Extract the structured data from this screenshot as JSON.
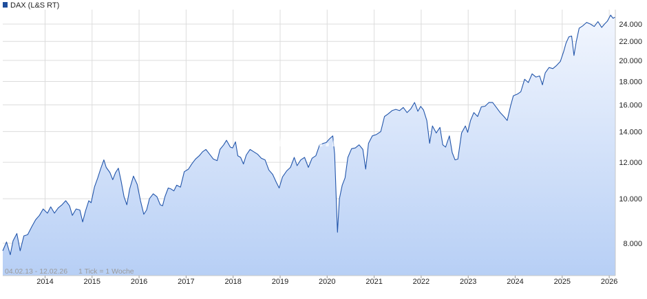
{
  "chart_data": {
    "type": "area",
    "legend": {
      "label": "DAX (L&S RT)",
      "placement": "top-left"
    },
    "watermark": "ARIVA.DE",
    "range_label": "04.02.13 - 12.02.26",
    "tick_label": "1 Tick = 1 Woche",
    "x_ticks": [
      "2014",
      "2015",
      "2016",
      "2017",
      "2018",
      "2019",
      "2020",
      "2021",
      "2022",
      "2023",
      "2024",
      "2025",
      "2026"
    ],
    "y_ticks": [
      {
        "value": 8000,
        "label": "8.000"
      },
      {
        "value": 10000,
        "label": "10.000"
      },
      {
        "value": 12000,
        "label": "12.000"
      },
      {
        "value": 14000,
        "label": "14.000"
      },
      {
        "value": 16000,
        "label": "16.000"
      },
      {
        "value": 18000,
        "label": "18.000"
      },
      {
        "value": 20000,
        "label": "20.000"
      },
      {
        "value": 22000,
        "label": "22.000"
      },
      {
        "value": 24000,
        "label": "24.000"
      }
    ],
    "y_scale": "log",
    "ylim": [
      6800,
      25800
    ],
    "xlim": [
      2013.1,
      2026.13
    ],
    "grid": true,
    "colors": {
      "line": "#2255aa",
      "fill_top": "#f2f6fe",
      "fill_bottom": "#b7cff5",
      "grid": "#dcdcdc",
      "legend_box": "#1f4e9c"
    },
    "series": [
      {
        "name": "DAX (L&S RT)",
        "points": [
          [
            2013.1,
            7700
          ],
          [
            2013.18,
            8050
          ],
          [
            2013.26,
            7550
          ],
          [
            2013.32,
            8100
          ],
          [
            2013.4,
            8400
          ],
          [
            2013.47,
            7700
          ],
          [
            2013.55,
            8300
          ],
          [
            2013.63,
            8350
          ],
          [
            2013.72,
            8700
          ],
          [
            2013.8,
            9000
          ],
          [
            2013.88,
            9200
          ],
          [
            2013.96,
            9500
          ],
          [
            2014.05,
            9300
          ],
          [
            2014.12,
            9600
          ],
          [
            2014.2,
            9300
          ],
          [
            2014.28,
            9550
          ],
          [
            2014.36,
            9700
          ],
          [
            2014.44,
            9900
          ],
          [
            2014.52,
            9650
          ],
          [
            2014.58,
            9200
          ],
          [
            2014.66,
            9500
          ],
          [
            2014.74,
            9450
          ],
          [
            2014.8,
            8900
          ],
          [
            2014.86,
            9400
          ],
          [
            2014.93,
            9900
          ],
          [
            2014.98,
            9800
          ],
          [
            2015.05,
            10600
          ],
          [
            2015.12,
            11100
          ],
          [
            2015.18,
            11600
          ],
          [
            2015.25,
            12150
          ],
          [
            2015.3,
            11700
          ],
          [
            2015.38,
            11400
          ],
          [
            2015.44,
            11000
          ],
          [
            2015.5,
            11400
          ],
          [
            2015.56,
            11650
          ],
          [
            2015.62,
            10900
          ],
          [
            2015.68,
            10100
          ],
          [
            2015.74,
            9700
          ],
          [
            2015.8,
            10500
          ],
          [
            2015.88,
            11200
          ],
          [
            2015.96,
            10750
          ],
          [
            2016.03,
            9900
          ],
          [
            2016.1,
            9250
          ],
          [
            2016.16,
            9450
          ],
          [
            2016.22,
            10000
          ],
          [
            2016.3,
            10250
          ],
          [
            2016.38,
            10100
          ],
          [
            2016.45,
            9700
          ],
          [
            2016.5,
            9650
          ],
          [
            2016.55,
            10100
          ],
          [
            2016.62,
            10550
          ],
          [
            2016.68,
            10500
          ],
          [
            2016.74,
            10400
          ],
          [
            2016.8,
            10700
          ],
          [
            2016.88,
            10600
          ],
          [
            2016.96,
            11450
          ],
          [
            2017.05,
            11600
          ],
          [
            2017.12,
            11900
          ],
          [
            2017.2,
            12200
          ],
          [
            2017.28,
            12400
          ],
          [
            2017.35,
            12650
          ],
          [
            2017.42,
            12800
          ],
          [
            2017.5,
            12500
          ],
          [
            2017.58,
            12200
          ],
          [
            2017.66,
            12100
          ],
          [
            2017.72,
            12800
          ],
          [
            2017.8,
            13100
          ],
          [
            2017.86,
            13400
          ],
          [
            2017.94,
            12950
          ],
          [
            2017.99,
            12900
          ],
          [
            2018.05,
            13300
          ],
          [
            2018.1,
            12400
          ],
          [
            2018.16,
            12300
          ],
          [
            2018.22,
            11900
          ],
          [
            2018.28,
            12450
          ],
          [
            2018.36,
            12800
          ],
          [
            2018.44,
            12650
          ],
          [
            2018.52,
            12500
          ],
          [
            2018.6,
            12250
          ],
          [
            2018.68,
            12150
          ],
          [
            2018.76,
            11550
          ],
          [
            2018.84,
            11300
          ],
          [
            2018.92,
            10850
          ],
          [
            2018.98,
            10550
          ],
          [
            2019.05,
            11150
          ],
          [
            2019.14,
            11500
          ],
          [
            2019.22,
            11700
          ],
          [
            2019.3,
            12300
          ],
          [
            2019.36,
            11800
          ],
          [
            2019.44,
            12150
          ],
          [
            2019.52,
            12300
          ],
          [
            2019.6,
            11700
          ],
          [
            2019.68,
            12250
          ],
          [
            2019.76,
            12400
          ],
          [
            2019.84,
            13100
          ],
          [
            2019.92,
            13200
          ],
          [
            2019.98,
            13250
          ],
          [
            2020.05,
            13500
          ],
          [
            2020.12,
            13700
          ],
          [
            2020.16,
            12500
          ],
          [
            2020.19,
            10200
          ],
          [
            2020.22,
            8450
          ],
          [
            2020.26,
            10000
          ],
          [
            2020.32,
            10700
          ],
          [
            2020.38,
            11100
          ],
          [
            2020.44,
            12300
          ],
          [
            2020.52,
            12850
          ],
          [
            2020.6,
            12900
          ],
          [
            2020.68,
            13100
          ],
          [
            2020.76,
            12800
          ],
          [
            2020.82,
            11600
          ],
          [
            2020.88,
            13200
          ],
          [
            2020.96,
            13700
          ],
          [
            2021.05,
            13800
          ],
          [
            2021.14,
            14000
          ],
          [
            2021.22,
            15100
          ],
          [
            2021.3,
            15300
          ],
          [
            2021.38,
            15550
          ],
          [
            2021.46,
            15650
          ],
          [
            2021.54,
            15550
          ],
          [
            2021.62,
            15800
          ],
          [
            2021.7,
            15400
          ],
          [
            2021.78,
            15700
          ],
          [
            2021.86,
            16200
          ],
          [
            2021.93,
            15500
          ],
          [
            2021.99,
            15880
          ],
          [
            2022.05,
            15600
          ],
          [
            2022.12,
            14800
          ],
          [
            2022.18,
            13200
          ],
          [
            2022.24,
            14400
          ],
          [
            2022.32,
            13900
          ],
          [
            2022.4,
            14300
          ],
          [
            2022.46,
            13100
          ],
          [
            2022.52,
            12950
          ],
          [
            2022.6,
            13700
          ],
          [
            2022.66,
            12600
          ],
          [
            2022.72,
            12150
          ],
          [
            2022.78,
            12200
          ],
          [
            2022.86,
            13900
          ],
          [
            2022.94,
            14400
          ],
          [
            2022.99,
            13950
          ],
          [
            2023.05,
            14800
          ],
          [
            2023.12,
            15400
          ],
          [
            2023.2,
            15100
          ],
          [
            2023.28,
            15850
          ],
          [
            2023.36,
            15900
          ],
          [
            2023.44,
            16200
          ],
          [
            2023.52,
            16200
          ],
          [
            2023.6,
            15800
          ],
          [
            2023.68,
            15400
          ],
          [
            2023.76,
            15100
          ],
          [
            2023.83,
            14800
          ],
          [
            2023.9,
            15900
          ],
          [
            2023.96,
            16750
          ],
          [
            2024.05,
            16900
          ],
          [
            2024.12,
            17100
          ],
          [
            2024.2,
            18200
          ],
          [
            2024.28,
            17900
          ],
          [
            2024.36,
            18700
          ],
          [
            2024.44,
            18400
          ],
          [
            2024.52,
            18500
          ],
          [
            2024.58,
            17700
          ],
          [
            2024.64,
            18800
          ],
          [
            2024.72,
            19300
          ],
          [
            2024.8,
            19200
          ],
          [
            2024.88,
            19500
          ],
          [
            2024.96,
            19900
          ],
          [
            2025.03,
            20900
          ],
          [
            2025.08,
            21800
          ],
          [
            2025.14,
            22500
          ],
          [
            2025.2,
            22600
          ],
          [
            2025.25,
            20500
          ],
          [
            2025.3,
            22000
          ],
          [
            2025.36,
            23500
          ],
          [
            2025.44,
            23800
          ],
          [
            2025.52,
            24200
          ],
          [
            2025.6,
            24000
          ],
          [
            2025.68,
            23700
          ],
          [
            2025.76,
            24300
          ],
          [
            2025.84,
            23600
          ],
          [
            2025.9,
            24000
          ],
          [
            2025.96,
            24350
          ],
          [
            2026.03,
            25100
          ],
          [
            2026.08,
            24700
          ],
          [
            2026.13,
            24850
          ]
        ]
      }
    ]
  }
}
